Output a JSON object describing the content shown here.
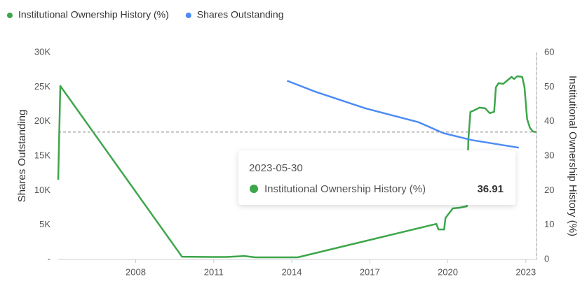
{
  "chart_data": {
    "type": "line",
    "series": [
      {
        "name": "Institutional Ownership History (%)",
        "color": "#3da64a",
        "axis": "y2",
        "x": [
          2005.02,
          2005.1,
          2009.78,
          2010.95,
          2011.5,
          2012.18,
          2012.59,
          2013.41,
          2014.23,
          2019.56,
          2019.64,
          2019.86,
          2019.91,
          2020.19,
          2020.46,
          2020.73,
          2020.79,
          2020.87,
          2021.01,
          2021.22,
          2021.44,
          2021.61,
          2021.78,
          2021.85,
          2021.95,
          2022.13,
          2022.23,
          2022.45,
          2022.55,
          2022.67,
          2022.86,
          2022.95,
          2023.05,
          2023.16,
          2023.27,
          2023.41
        ],
        "values": [
          23.1,
          50.3,
          0.8,
          0.7,
          0.7,
          1.0,
          0.6,
          0.6,
          0.6,
          10.3,
          8.7,
          8.7,
          12.0,
          14.8,
          15.0,
          15.4,
          34.7,
          42.8,
          43.2,
          44.0,
          43.8,
          42.4,
          42.8,
          49.9,
          51.1,
          50.9,
          51.5,
          52.9,
          52.3,
          53.1,
          52.9,
          49.9,
          40.7,
          38.1,
          37.1,
          36.91
        ]
      },
      {
        "name": "Shares Outstanding",
        "color": "#4c8bf5",
        "axis": "y",
        "x": [
          2013.82,
          2014.91,
          2016.83,
          2018.87,
          2019.83,
          2020.92,
          2022.73
        ],
        "values": [
          25900,
          24300,
          21900,
          19900,
          18300,
          17300,
          16200
        ]
      }
    ],
    "xlim": [
      2005.02,
      2023.41
    ],
    "xticks": [
      2008,
      2011,
      2014,
      2017,
      2020,
      2023
    ],
    "ylim": [
      0,
      30000
    ],
    "yticks": [
      {
        "value": 0,
        "label": "-"
      },
      {
        "value": 5000,
        "label": "5K"
      },
      {
        "value": 10000,
        "label": "10K"
      },
      {
        "value": 15000,
        "label": "15K"
      },
      {
        "value": 20000,
        "label": "20K"
      },
      {
        "value": 25000,
        "label": "25K"
      },
      {
        "value": 30000,
        "label": "30K"
      }
    ],
    "y2lim": [
      0,
      60
    ],
    "y2ticks": [
      0,
      10,
      20,
      30,
      40,
      50,
      60
    ],
    "ylabel": "Shares Outstanding",
    "y2label": "Institutional Ownership History (%)",
    "tooltip": {
      "date": "2023-05-30",
      "value": 36.91
    }
  }
}
